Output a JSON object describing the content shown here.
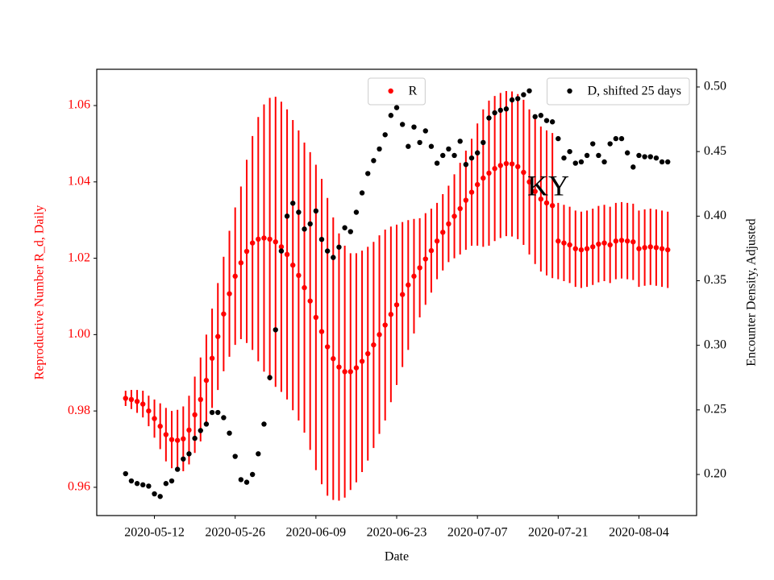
{
  "chart_data": {
    "type": "errorbar",
    "xlabel": "Date",
    "ylabel": "Reproductive Number R_d, Daily",
    "y2label": "Encounter Density, Adjusted",
    "annotation": "KY",
    "x": [
      "2020-05-07",
      "2020-05-08",
      "2020-05-09",
      "2020-05-10",
      "2020-05-11",
      "2020-05-12",
      "2020-05-13",
      "2020-05-14",
      "2020-05-15",
      "2020-05-16",
      "2020-05-17",
      "2020-05-18",
      "2020-05-19",
      "2020-05-20",
      "2020-05-21",
      "2020-05-22",
      "2020-05-23",
      "2020-05-24",
      "2020-05-25",
      "2020-05-26",
      "2020-05-27",
      "2020-05-28",
      "2020-05-29",
      "2020-05-30",
      "2020-05-31",
      "2020-06-01",
      "2020-06-02",
      "2020-06-03",
      "2020-06-04",
      "2020-06-05",
      "2020-06-06",
      "2020-06-07",
      "2020-06-08",
      "2020-06-09",
      "2020-06-10",
      "2020-06-11",
      "2020-06-12",
      "2020-06-13",
      "2020-06-14",
      "2020-06-15",
      "2020-06-16",
      "2020-06-17",
      "2020-06-18",
      "2020-06-19",
      "2020-06-20",
      "2020-06-21",
      "2020-06-22",
      "2020-06-23",
      "2020-06-24",
      "2020-06-25",
      "2020-06-26",
      "2020-06-27",
      "2020-06-28",
      "2020-06-29",
      "2020-06-30",
      "2020-07-01",
      "2020-07-02",
      "2020-07-03",
      "2020-07-04",
      "2020-07-05",
      "2020-07-06",
      "2020-07-07",
      "2020-07-08",
      "2020-07-09",
      "2020-07-10",
      "2020-07-11",
      "2020-07-12",
      "2020-07-13",
      "2020-07-14",
      "2020-07-15",
      "2020-07-16",
      "2020-07-17",
      "2020-07-18",
      "2020-07-19",
      "2020-07-20",
      "2020-07-21",
      "2020-07-22",
      "2020-07-23",
      "2020-07-24",
      "2020-07-25",
      "2020-07-26",
      "2020-07-27",
      "2020-07-28",
      "2020-07-29",
      "2020-07-30",
      "2020-07-31",
      "2020-08-01",
      "2020-08-02",
      "2020-08-03",
      "2020-08-04",
      "2020-08-05",
      "2020-08-06",
      "2020-08-07",
      "2020-08-08",
      "2020-08-09"
    ],
    "series": [
      {
        "name": "R",
        "color": "#ff0000",
        "axis": "y",
        "legend_loc": "upper center",
        "values": [
          0.9833,
          0.983,
          0.9825,
          0.9818,
          0.98,
          0.978,
          0.976,
          0.9738,
          0.9725,
          0.9723,
          0.9727,
          0.975,
          0.979,
          0.983,
          0.988,
          0.9938,
          0.9995,
          1.0054,
          1.0107,
          1.0153,
          1.0188,
          1.0218,
          1.024,
          1.025,
          1.0253,
          1.025,
          1.0243,
          1.023,
          1.021,
          1.0182,
          1.0155,
          1.0123,
          1.0088,
          1.0045,
          1.0008,
          0.9968,
          0.9937,
          0.9915,
          0.9903,
          0.9903,
          0.9913,
          0.993,
          0.995,
          0.9973,
          1.0,
          1.0025,
          1.0053,
          1.0078,
          1.0105,
          1.013,
          1.0153,
          1.0175,
          1.0198,
          1.022,
          1.0245,
          1.0268,
          1.029,
          1.031,
          1.033,
          1.0352,
          1.0373,
          1.0393,
          1.041,
          1.0423,
          1.0435,
          1.0443,
          1.0448,
          1.0447,
          1.044,
          1.0425,
          1.04,
          1.0375,
          1.0355,
          1.0345,
          1.0338,
          1.0245,
          1.024,
          1.0235,
          1.0225,
          1.0222,
          1.0225,
          1.023,
          1.0237,
          1.024,
          1.0235,
          1.0245,
          1.0247,
          1.0245,
          1.0243,
          1.0225,
          1.0228,
          1.023,
          1.0228,
          1.0225,
          1.0222
        ],
        "errors": [
          0.002,
          0.0025,
          0.003,
          0.0035,
          0.004,
          0.005,
          0.006,
          0.007,
          0.0075,
          0.008,
          0.0085,
          0.009,
          0.01,
          0.011,
          0.012,
          0.013,
          0.014,
          0.015,
          0.0165,
          0.018,
          0.02,
          0.024,
          0.028,
          0.032,
          0.035,
          0.037,
          0.038,
          0.038,
          0.038,
          0.038,
          0.038,
          0.038,
          0.039,
          0.04,
          0.04,
          0.039,
          0.037,
          0.035,
          0.033,
          0.031,
          0.03,
          0.029,
          0.028,
          0.027,
          0.026,
          0.025,
          0.023,
          0.021,
          0.019,
          0.017,
          0.015,
          0.013,
          0.012,
          0.011,
          0.01,
          0.01,
          0.01,
          0.011,
          0.012,
          0.013,
          0.014,
          0.016,
          0.018,
          0.019,
          0.019,
          0.019,
          0.019,
          0.019,
          0.019,
          0.019,
          0.019,
          0.019,
          0.019,
          0.019,
          0.019,
          0.01,
          0.01,
          0.01,
          0.01,
          0.01,
          0.01,
          0.01,
          0.01,
          0.01,
          0.01,
          0.01,
          0.01,
          0.01,
          0.01,
          0.01,
          0.01,
          0.01,
          0.01,
          0.01,
          0.01
        ]
      },
      {
        "name": "D, shifted 25 days",
        "color": "#000000",
        "axis": "y2",
        "legend_loc": "upper right",
        "values": [
          0.2006,
          0.195,
          0.193,
          0.192,
          0.191,
          0.185,
          0.183,
          0.193,
          0.195,
          0.204,
          0.212,
          0.216,
          0.228,
          0.234,
          0.239,
          0.248,
          0.248,
          0.244,
          0.232,
          0.214,
          0.196,
          0.194,
          0.2,
          0.216,
          0.239,
          0.275,
          0.312,
          0.373,
          0.4,
          0.41,
          0.403,
          0.39,
          0.394,
          0.404,
          0.382,
          0.373,
          0.368,
          0.376,
          0.391,
          0.388,
          0.403,
          0.418,
          0.433,
          0.443,
          0.452,
          0.463,
          0.478,
          0.484,
          0.471,
          0.454,
          0.469,
          0.457,
          0.466,
          0.454,
          0.441,
          0.447,
          0.452,
          0.447,
          0.458,
          0.44,
          0.445,
          0.449,
          0.457,
          0.476,
          0.48,
          0.482,
          0.483,
          0.49,
          0.491,
          0.494,
          0.497,
          0.477,
          0.478,
          0.474,
          0.473,
          0.46,
          0.445,
          0.45,
          0.441,
          0.442,
          0.447,
          0.456,
          0.447,
          0.442,
          0.456,
          0.46,
          0.46,
          0.449,
          0.438,
          0.447,
          0.446,
          0.446,
          0.445,
          0.442,
          0.442
        ]
      }
    ],
    "xlim": [
      "2020-05-02",
      "2020-08-14"
    ],
    "xticks": [
      "2020-05-12",
      "2020-05-26",
      "2020-06-09",
      "2020-06-23",
      "2020-07-07",
      "2020-07-21",
      "2020-08-04"
    ],
    "ylim": [
      0.9526,
      1.0695
    ],
    "yticks": [
      0.96,
      0.98,
      {
        "value": 1.0,
        "label": "1.00"
      },
      1.02,
      1.04,
      1.06
    ],
    "y2lim": [
      0.1682,
      0.5137
    ],
    "y2ticks": [
      {
        "value": 0.2,
        "label": "0.20"
      },
      0.25,
      {
        "value": 0.3,
        "label": "0.30"
      },
      0.35,
      {
        "value": 0.4,
        "label": "0.40"
      },
      0.45,
      {
        "value": 0.5,
        "label": "0.50"
      }
    ]
  }
}
